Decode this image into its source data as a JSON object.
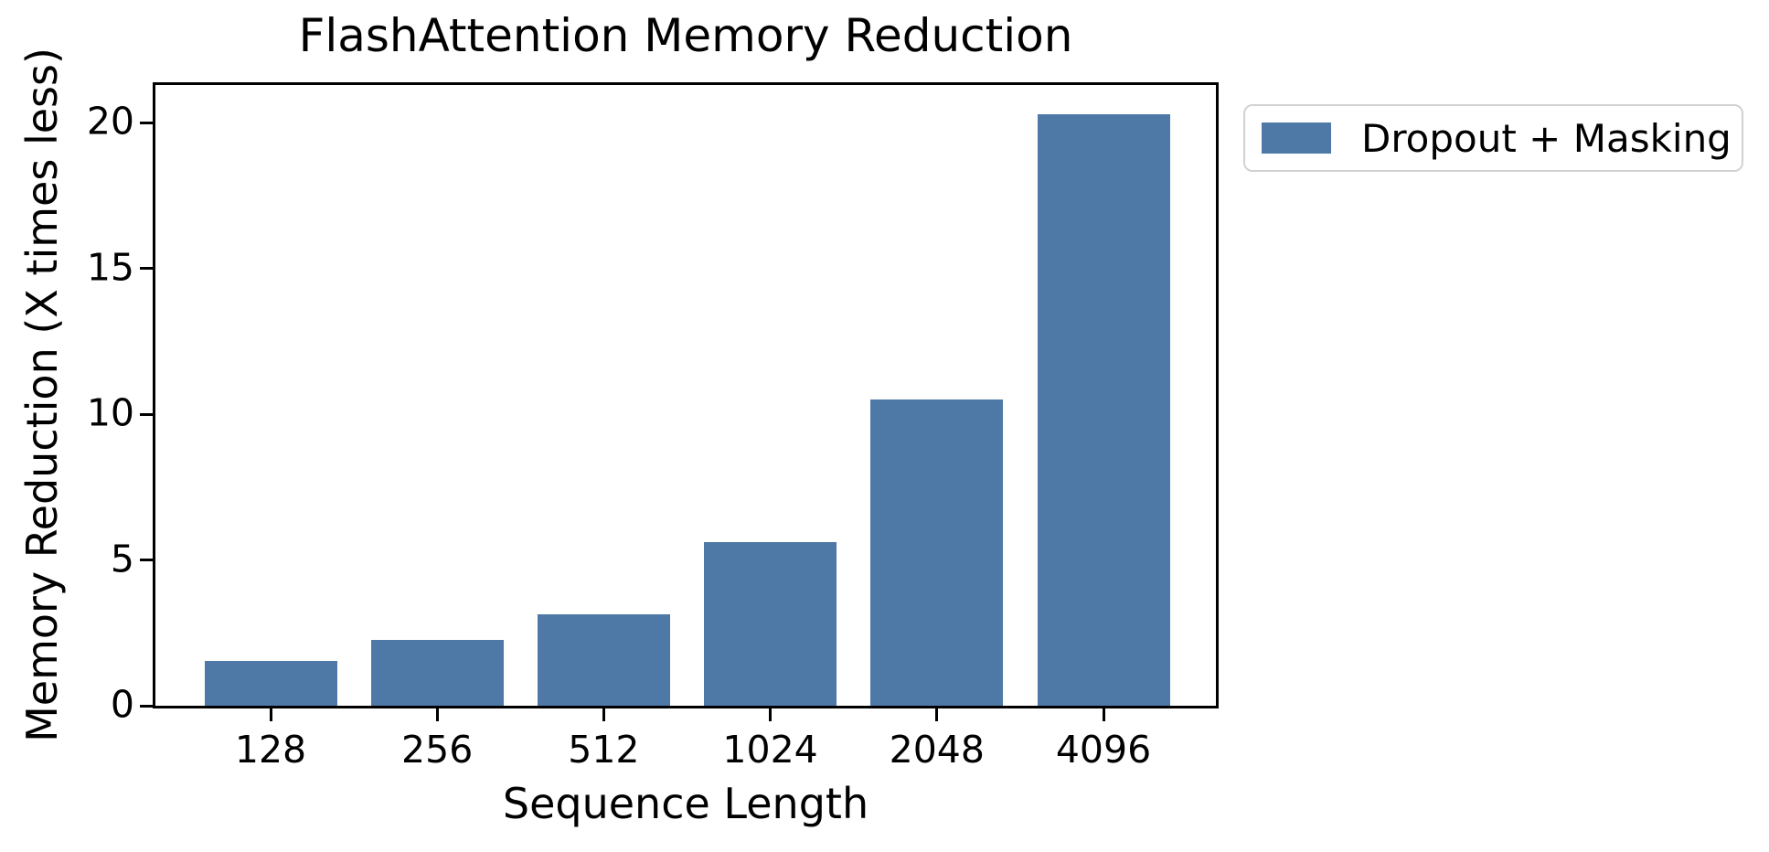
{
  "chart_data": {
    "type": "bar",
    "title": "FlashAttention Memory Reduction",
    "xlabel": "Sequence Length",
    "ylabel": "Memory Reduction (X times less)",
    "categories": [
      "128",
      "256",
      "512",
      "1024",
      "2048",
      "4096"
    ],
    "series": [
      {
        "name": "Dropout + Masking",
        "color": "#4e79a7",
        "values": [
          1.55,
          2.25,
          3.15,
          5.6,
          10.5,
          20.3
        ]
      }
    ],
    "ylim": [
      0,
      21.3
    ],
    "yticks": [
      0,
      5,
      10,
      15,
      20
    ],
    "grid": false,
    "legend": {
      "labels": [
        "Dropout + Masking"
      ],
      "position": "outside-upper-right"
    },
    "colors": {
      "axis": "#000000",
      "text": "#000000",
      "legend_border": "#d2d2d2",
      "background": "#ffffff"
    }
  }
}
